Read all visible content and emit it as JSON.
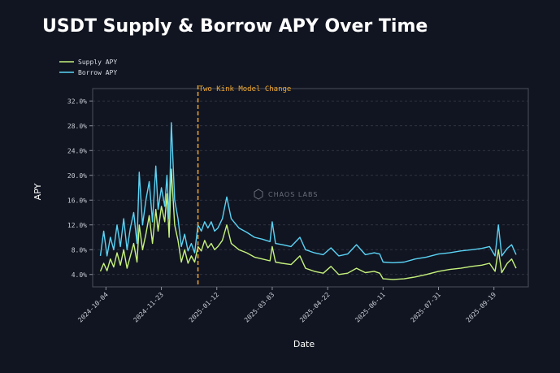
{
  "chart_data": {
    "type": "line",
    "title": "USDT Supply & Borrow APY Over Time",
    "xlabel": "Date",
    "ylabel": "APY",
    "watermark": "CHAOS LABS",
    "x_range": [
      "2024-09-22",
      "2025-10-20"
    ],
    "ylim": [
      2.0,
      34.0
    ],
    "yticks": [
      4.0,
      8.0,
      12.0,
      16.0,
      20.0,
      24.0,
      28.0,
      32.0
    ],
    "ytick_labels": [
      "4.0%",
      "8.0%",
      "12.0%",
      "16.0%",
      "20.0%",
      "24.0%",
      "28.0%",
      "32.0%"
    ],
    "xticks": [
      "2024-10-04",
      "2024-11-23",
      "2025-01-12",
      "2025-03-03",
      "2025-04-22",
      "2025-06-11",
      "2025-07-31",
      "2025-09-19"
    ],
    "grid": true,
    "legend_position": "top-left",
    "colors": {
      "supply": "#c6f27c",
      "borrow": "#5ad3f5",
      "annotation": "#f0a830",
      "grid": "#3a3f4c",
      "axis": "#8a8f9c",
      "background": "#111521"
    },
    "annotation": {
      "label": "Two Kink Model Change",
      "x": "2024-12-26"
    },
    "series": [
      {
        "name": "Supply APY",
        "key": "supply",
        "points": [
          [
            "2024-09-29",
            4.5
          ],
          [
            "2024-10-02",
            5.8
          ],
          [
            "2024-10-05",
            4.6
          ],
          [
            "2024-10-08",
            6.5
          ],
          [
            "2024-10-11",
            5.2
          ],
          [
            "2024-10-14",
            7.5
          ],
          [
            "2024-10-17",
            5.5
          ],
          [
            "2024-10-20",
            8.0
          ],
          [
            "2024-10-23",
            5.0
          ],
          [
            "2024-10-26",
            7.0
          ],
          [
            "2024-10-29",
            9.0
          ],
          [
            "2024-11-01",
            6.0
          ],
          [
            "2024-11-03",
            12.0
          ],
          [
            "2024-11-06",
            8.0
          ],
          [
            "2024-11-09",
            10.5
          ],
          [
            "2024-11-12",
            13.5
          ],
          [
            "2024-11-15",
            9.0
          ],
          [
            "2024-11-18",
            14.5
          ],
          [
            "2024-11-20",
            11.0
          ],
          [
            "2024-11-23",
            15.0
          ],
          [
            "2024-11-26",
            12.5
          ],
          [
            "2024-11-28",
            17.0
          ],
          [
            "2024-11-30",
            10.0
          ],
          [
            "2024-12-02",
            21.0
          ],
          [
            "2024-12-05",
            12.0
          ],
          [
            "2024-12-08",
            9.5
          ],
          [
            "2024-12-11",
            6.0
          ],
          [
            "2024-12-14",
            8.0
          ],
          [
            "2024-12-17",
            5.8
          ],
          [
            "2024-12-20",
            7.0
          ],
          [
            "2024-12-23",
            6.0
          ],
          [
            "2024-12-26",
            8.5
          ],
          [
            "2024-12-29",
            7.8
          ],
          [
            "2025-01-01",
            9.5
          ],
          [
            "2025-01-04",
            8.3
          ],
          [
            "2025-01-07",
            9.0
          ],
          [
            "2025-01-10",
            8.0
          ],
          [
            "2025-01-13",
            8.5
          ],
          [
            "2025-01-17",
            9.5
          ],
          [
            "2025-01-21",
            12.0
          ],
          [
            "2025-01-25",
            9.0
          ],
          [
            "2025-02-01",
            8.0
          ],
          [
            "2025-02-08",
            7.5
          ],
          [
            "2025-02-15",
            6.8
          ],
          [
            "2025-02-22",
            6.5
          ],
          [
            "2025-03-01",
            6.2
          ],
          [
            "2025-03-03",
            8.5
          ],
          [
            "2025-03-06",
            6.0
          ],
          [
            "2025-03-12",
            5.8
          ],
          [
            "2025-03-20",
            5.6
          ],
          [
            "2025-03-28",
            7.0
          ],
          [
            "2025-04-02",
            5.0
          ],
          [
            "2025-04-10",
            4.5
          ],
          [
            "2025-04-18",
            4.2
          ],
          [
            "2025-04-25",
            5.3
          ],
          [
            "2025-05-02",
            4.0
          ],
          [
            "2025-05-10",
            4.2
          ],
          [
            "2025-05-18",
            5.0
          ],
          [
            "2025-05-26",
            4.3
          ],
          [
            "2025-06-03",
            4.5
          ],
          [
            "2025-06-08",
            4.2
          ],
          [
            "2025-06-11",
            3.3
          ],
          [
            "2025-06-20",
            3.2
          ],
          [
            "2025-06-30",
            3.3
          ],
          [
            "2025-07-10",
            3.6
          ],
          [
            "2025-07-20",
            4.0
          ],
          [
            "2025-07-31",
            4.5
          ],
          [
            "2025-08-10",
            4.8
          ],
          [
            "2025-08-20",
            5.0
          ],
          [
            "2025-08-30",
            5.3
          ],
          [
            "2025-09-08",
            5.5
          ],
          [
            "2025-09-15",
            5.8
          ],
          [
            "2025-09-20",
            4.5
          ],
          [
            "2025-09-23",
            8.0
          ],
          [
            "2025-09-26",
            4.3
          ],
          [
            "2025-10-01",
            5.8
          ],
          [
            "2025-10-05",
            6.5
          ],
          [
            "2025-10-09",
            5.0
          ]
        ]
      },
      {
        "name": "Borrow APY",
        "key": "borrow",
        "points": [
          [
            "2024-09-29",
            7.0
          ],
          [
            "2024-10-02",
            11.0
          ],
          [
            "2024-10-05",
            7.0
          ],
          [
            "2024-10-08",
            10.0
          ],
          [
            "2024-10-11",
            8.0
          ],
          [
            "2024-10-14",
            12.0
          ],
          [
            "2024-10-17",
            8.5
          ],
          [
            "2024-10-20",
            13.0
          ],
          [
            "2024-10-23",
            8.0
          ],
          [
            "2024-10-26",
            11.5
          ],
          [
            "2024-10-29",
            14.0
          ],
          [
            "2024-11-01",
            9.0
          ],
          [
            "2024-11-03",
            20.5
          ],
          [
            "2024-11-06",
            12.0
          ],
          [
            "2024-11-09",
            16.0
          ],
          [
            "2024-11-12",
            19.0
          ],
          [
            "2024-11-15",
            12.5
          ],
          [
            "2024-11-18",
            21.5
          ],
          [
            "2024-11-20",
            14.5
          ],
          [
            "2024-11-23",
            18.0
          ],
          [
            "2024-11-26",
            15.0
          ],
          [
            "2024-11-28",
            20.0
          ],
          [
            "2024-11-30",
            13.0
          ],
          [
            "2024-12-02",
            28.5
          ],
          [
            "2024-12-05",
            16.0
          ],
          [
            "2024-12-08",
            13.0
          ],
          [
            "2024-12-11",
            8.5
          ],
          [
            "2024-12-14",
            10.5
          ],
          [
            "2024-12-17",
            7.8
          ],
          [
            "2024-12-20",
            9.0
          ],
          [
            "2024-12-23",
            7.5
          ],
          [
            "2024-12-26",
            12.0
          ],
          [
            "2024-12-29",
            11.0
          ],
          [
            "2025-01-01",
            12.5
          ],
          [
            "2025-01-04",
            11.5
          ],
          [
            "2025-01-07",
            12.5
          ],
          [
            "2025-01-10",
            11.0
          ],
          [
            "2025-01-13",
            11.5
          ],
          [
            "2025-01-17",
            13.0
          ],
          [
            "2025-01-21",
            16.5
          ],
          [
            "2025-01-25",
            13.0
          ],
          [
            "2025-02-01",
            11.5
          ],
          [
            "2025-02-08",
            10.8
          ],
          [
            "2025-02-15",
            10.0
          ],
          [
            "2025-02-22",
            9.7
          ],
          [
            "2025-03-01",
            9.3
          ],
          [
            "2025-03-03",
            12.5
          ],
          [
            "2025-03-06",
            9.0
          ],
          [
            "2025-03-12",
            8.8
          ],
          [
            "2025-03-20",
            8.5
          ],
          [
            "2025-03-28",
            10.0
          ],
          [
            "2025-04-02",
            8.0
          ],
          [
            "2025-04-10",
            7.5
          ],
          [
            "2025-04-18",
            7.2
          ],
          [
            "2025-04-25",
            8.3
          ],
          [
            "2025-05-02",
            7.0
          ],
          [
            "2025-05-10",
            7.3
          ],
          [
            "2025-05-18",
            8.8
          ],
          [
            "2025-05-26",
            7.2
          ],
          [
            "2025-06-03",
            7.5
          ],
          [
            "2025-06-08",
            7.3
          ],
          [
            "2025-06-11",
            6.0
          ],
          [
            "2025-06-20",
            5.9
          ],
          [
            "2025-06-30",
            6.0
          ],
          [
            "2025-07-10",
            6.5
          ],
          [
            "2025-07-20",
            6.8
          ],
          [
            "2025-07-31",
            7.3
          ],
          [
            "2025-08-10",
            7.5
          ],
          [
            "2025-08-20",
            7.8
          ],
          [
            "2025-08-30",
            8.0
          ],
          [
            "2025-09-08",
            8.2
          ],
          [
            "2025-09-15",
            8.5
          ],
          [
            "2025-09-20",
            7.0
          ],
          [
            "2025-09-23",
            12.0
          ],
          [
            "2025-09-26",
            7.0
          ],
          [
            "2025-10-01",
            8.2
          ],
          [
            "2025-10-05",
            8.8
          ],
          [
            "2025-10-09",
            7.2
          ]
        ]
      }
    ]
  }
}
